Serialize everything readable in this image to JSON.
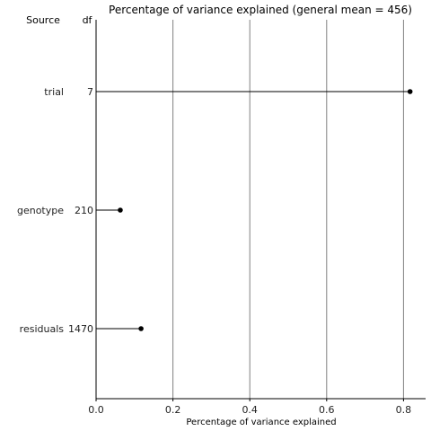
{
  "chart_data": {
    "type": "dot",
    "title": "Percentage of variance explained (general mean = 456)",
    "xlabel": "Percentage of variance explained",
    "column_headers": {
      "source": "Source",
      "df": "df"
    },
    "xlim": [
      0,
      0.86
    ],
    "x_ticks": [
      0.0,
      0.2,
      0.4,
      0.6,
      0.8
    ],
    "x_tick_labels": [
      "0.0",
      "0.2",
      "0.4",
      "0.6",
      "0.8"
    ],
    "grid": true,
    "rows": [
      {
        "source": "trial",
        "df": "7",
        "value": 0.817
      },
      {
        "source": "genotype",
        "df": "210",
        "value": 0.063
      },
      {
        "source": "residuals",
        "df": "1470",
        "value": 0.117
      }
    ]
  }
}
